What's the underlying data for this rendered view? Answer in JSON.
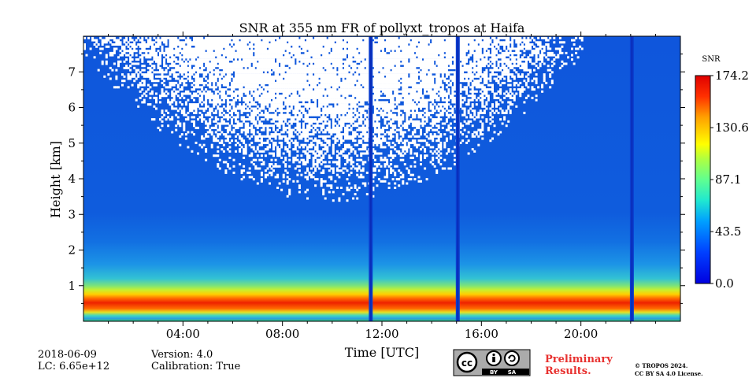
{
  "chart_data": {
    "type": "heatmap",
    "title": "SNR at 355 nm FR of pollyxt_tropos at Haifa",
    "xlabel": "Time [UTC]",
    "ylabel": "Height [km]",
    "x_range_hours": [
      0,
      24
    ],
    "ylim_km": [
      0,
      8
    ],
    "x_ticks": [
      {
        "hour": 4,
        "label": "04:00"
      },
      {
        "hour": 8,
        "label": "08:00"
      },
      {
        "hour": 12,
        "label": "12:00"
      },
      {
        "hour": 16,
        "label": "16:00"
      },
      {
        "hour": 20,
        "label": "20:00"
      }
    ],
    "y_ticks": [
      {
        "km": 1,
        "label": "1"
      },
      {
        "km": 2,
        "label": "2"
      },
      {
        "km": 3,
        "label": "3"
      },
      {
        "km": 4,
        "label": "4"
      },
      {
        "km": 5,
        "label": "5"
      },
      {
        "km": 6,
        "label": "6"
      },
      {
        "km": 7,
        "label": "7"
      }
    ],
    "colorbar": {
      "label": "SNR",
      "min": 0.0,
      "max": 174.2,
      "ticks": [
        {
          "value": 0.0,
          "label": "0.0"
        },
        {
          "value": 43.5,
          "label": "43.5"
        },
        {
          "value": 87.1,
          "label": "87.1"
        },
        {
          "value": 130.6,
          "label": "130.6"
        },
        {
          "value": 174.2,
          "label": "174.2"
        }
      ],
      "colormap": "jet"
    },
    "features": {
      "peak_layer_km": [
        0.2,
        0.45
      ],
      "boundary_layer_top_km": 1.1,
      "noise_region_center_hour": 10,
      "noise_lower_edge_km": 3.8,
      "data_gap_hours": [
        11.55,
        15.05,
        22.05
      ]
    }
  },
  "info": {
    "date": "2018-06-09",
    "lc": "LC: 6.65e+12",
    "version": "Version: 4.0",
    "calibration": "Calibration: True",
    "preliminary_line1": "Preliminary",
    "preliminary_line2": "Results.",
    "copyright_line1": "© TROPOS 2024.",
    "copyright_line2": "CC BY SA 4.0 License.",
    "license_badge": {
      "cc": "cc",
      "by": "BY",
      "sa": "SA"
    }
  }
}
